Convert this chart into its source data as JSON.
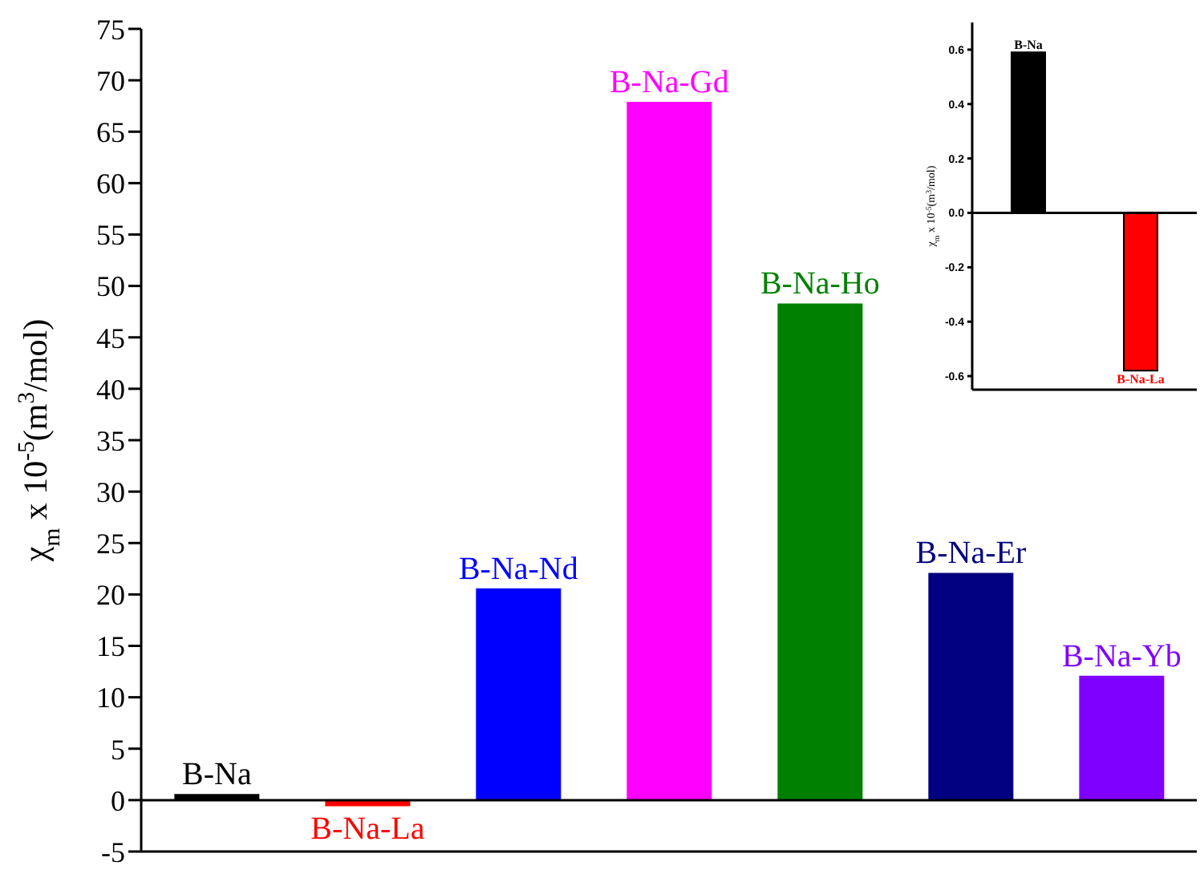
{
  "chart_data": [
    {
      "type": "bar",
      "ylabel": "χ$_{m}$ x 10$^{-5}$(m$^{3}$/mol)",
      "categories": [
        "B-Na",
        "B-Na-La",
        "B-Na-Nd",
        "B-Na-Gd",
        "B-Na-Ho",
        "B-Na-Er",
        "B-Na-Yb"
      ],
      "values": [
        0.6,
        -0.6,
        20.6,
        67.9,
        48.3,
        22.1,
        12.1
      ],
      "colors": [
        "#000000",
        "#ff0000",
        "#0000ff",
        "#ff00ff",
        "#008000",
        "#000080",
        "#8000ff"
      ],
      "ylim": [
        -5,
        75
      ],
      "yticks": [
        -5,
        0,
        5,
        10,
        15,
        20,
        25,
        30,
        35,
        40,
        45,
        50,
        55,
        60,
        65,
        70,
        75
      ],
      "tick_labels": "y",
      "ref_lines": [
        {
          "axis": "y",
          "value": 0
        }
      ]
    },
    {
      "type": "bar",
      "ylabel": "χ$_{m}$ x 10$^{-5}$(m$^{3}$/mol)",
      "categories": [
        "B-Na",
        "B-Na-La"
      ],
      "values": [
        0.59,
        -0.58
      ],
      "colors": [
        "#000000",
        "#ff0000"
      ],
      "ylim": [
        -0.65,
        0.7
      ],
      "yticks": [
        {
          "value": -0.6,
          "label": "-0.6"
        },
        {
          "value": -0.4,
          "label": "-0.4"
        },
        {
          "value": -0.2,
          "label": "-0.2"
        },
        {
          "value": 0,
          "label": "0.0"
        },
        {
          "value": 0.2,
          "label": "0.2"
        },
        {
          "value": 0.4,
          "label": "0.4"
        },
        {
          "value": 0.6,
          "label": "0.6"
        }
      ],
      "tick_labels": "y",
      "ref_lines": [
        {
          "axis": "y",
          "value": 0
        }
      ]
    }
  ]
}
